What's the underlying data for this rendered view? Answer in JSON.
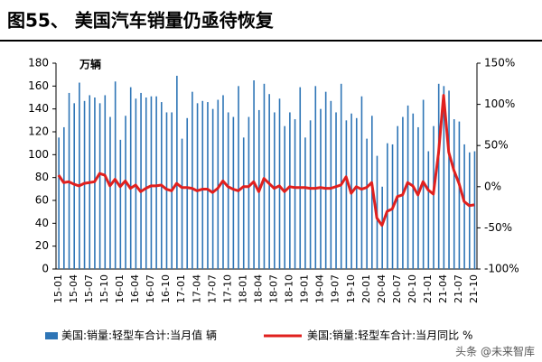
{
  "chart_data": {
    "type": "bar-line",
    "title": "图55、 美国汽车销量仍亟待恢复",
    "ylabel": "万辆",
    "watermark": "头条 @未来智库",
    "categories": [
      "15-01",
      null,
      null,
      "15-04",
      null,
      null,
      "15-07",
      null,
      null,
      "15-10",
      null,
      null,
      "16-01",
      null,
      null,
      "16-04",
      null,
      null,
      "16-07",
      null,
      null,
      "16-10",
      null,
      null,
      "17-01",
      null,
      null,
      "17-04",
      null,
      null,
      "17-07",
      null,
      null,
      "17-10",
      null,
      null,
      "18-01",
      null,
      null,
      "18-04",
      null,
      null,
      "18-07",
      null,
      null,
      "18-10",
      null,
      null,
      "19-01",
      null,
      null,
      "19-04",
      null,
      null,
      "19-07",
      null,
      null,
      "19-10",
      null,
      null,
      "20-01",
      null,
      null,
      "20-04",
      null,
      null,
      "20-07",
      null,
      null,
      "20-10",
      null,
      null,
      "21-01",
      null,
      null,
      "21-04",
      null,
      null,
      "21-07",
      null,
      null,
      "21-10"
    ],
    "series": [
      {
        "name": "美国:销量:轻型车合计:当月值 辆",
        "color": "#2e75b6",
        "kind": "bar",
        "axis": "y",
        "values": [
          115,
          124,
          154,
          145,
          163,
          147,
          152,
          150,
          145,
          152,
          133,
          164,
          113,
          134,
          159,
          149,
          154,
          150,
          151,
          151,
          146,
          137,
          137,
          169,
          114,
          132,
          155,
          145,
          147,
          146,
          140,
          148,
          152,
          137,
          133,
          160,
          115,
          133,
          165,
          139,
          162,
          153,
          137,
          149,
          125,
          137,
          131,
          159,
          115,
          130,
          160,
          140,
          155,
          147,
          137,
          162,
          130,
          136,
          132,
          151,
          114,
          134,
          99,
          72,
          110,
          109,
          125,
          133,
          143,
          136,
          124,
          148,
          103,
          125,
          162,
          160,
          156,
          131,
          129,
          109,
          102,
          103
        ]
      },
      {
        "name": "美国:销量:轻型车合计:当月同比 %",
        "color": "#e0201e",
        "kind": "line",
        "axis": "y2",
        "values": [
          14,
          5,
          6,
          3,
          1,
          4,
          5,
          6,
          16,
          14,
          1,
          9,
          0,
          7,
          -2,
          2,
          -6,
          -2,
          1,
          1,
          2,
          -3,
          -5,
          4,
          -1,
          -1,
          -2,
          -5,
          -3,
          -3,
          -7,
          -2,
          7,
          0,
          -3,
          -5,
          0,
          0,
          6,
          -6,
          10,
          4,
          -2,
          1,
          -6,
          0,
          -1,
          -1,
          -1,
          -2,
          -2,
          -1,
          -2,
          -2,
          0,
          2,
          12,
          -8,
          0,
          -3,
          -1,
          5,
          -38,
          -47,
          -30,
          -27,
          -12,
          -10,
          5,
          1,
          -10,
          6,
          -4,
          -9,
          40,
          111,
          42,
          20,
          4,
          -18,
          -23,
          -22
        ]
      }
    ],
    "ylim": [
      0,
      180
    ],
    "yticks": [
      0,
      20,
      40,
      60,
      80,
      100,
      120,
      140,
      160,
      180
    ],
    "y2lim": [
      -100,
      150
    ],
    "y2ticks": [
      {
        "value": -100,
        "label": "-100%"
      },
      {
        "value": -50,
        "label": "-50%"
      },
      {
        "value": 0,
        "label": "0%"
      },
      {
        "value": 50,
        "label": "50%"
      },
      {
        "value": 100,
        "label": "100%"
      },
      {
        "value": 150,
        "label": "150%"
      }
    ],
    "grid": false
  }
}
